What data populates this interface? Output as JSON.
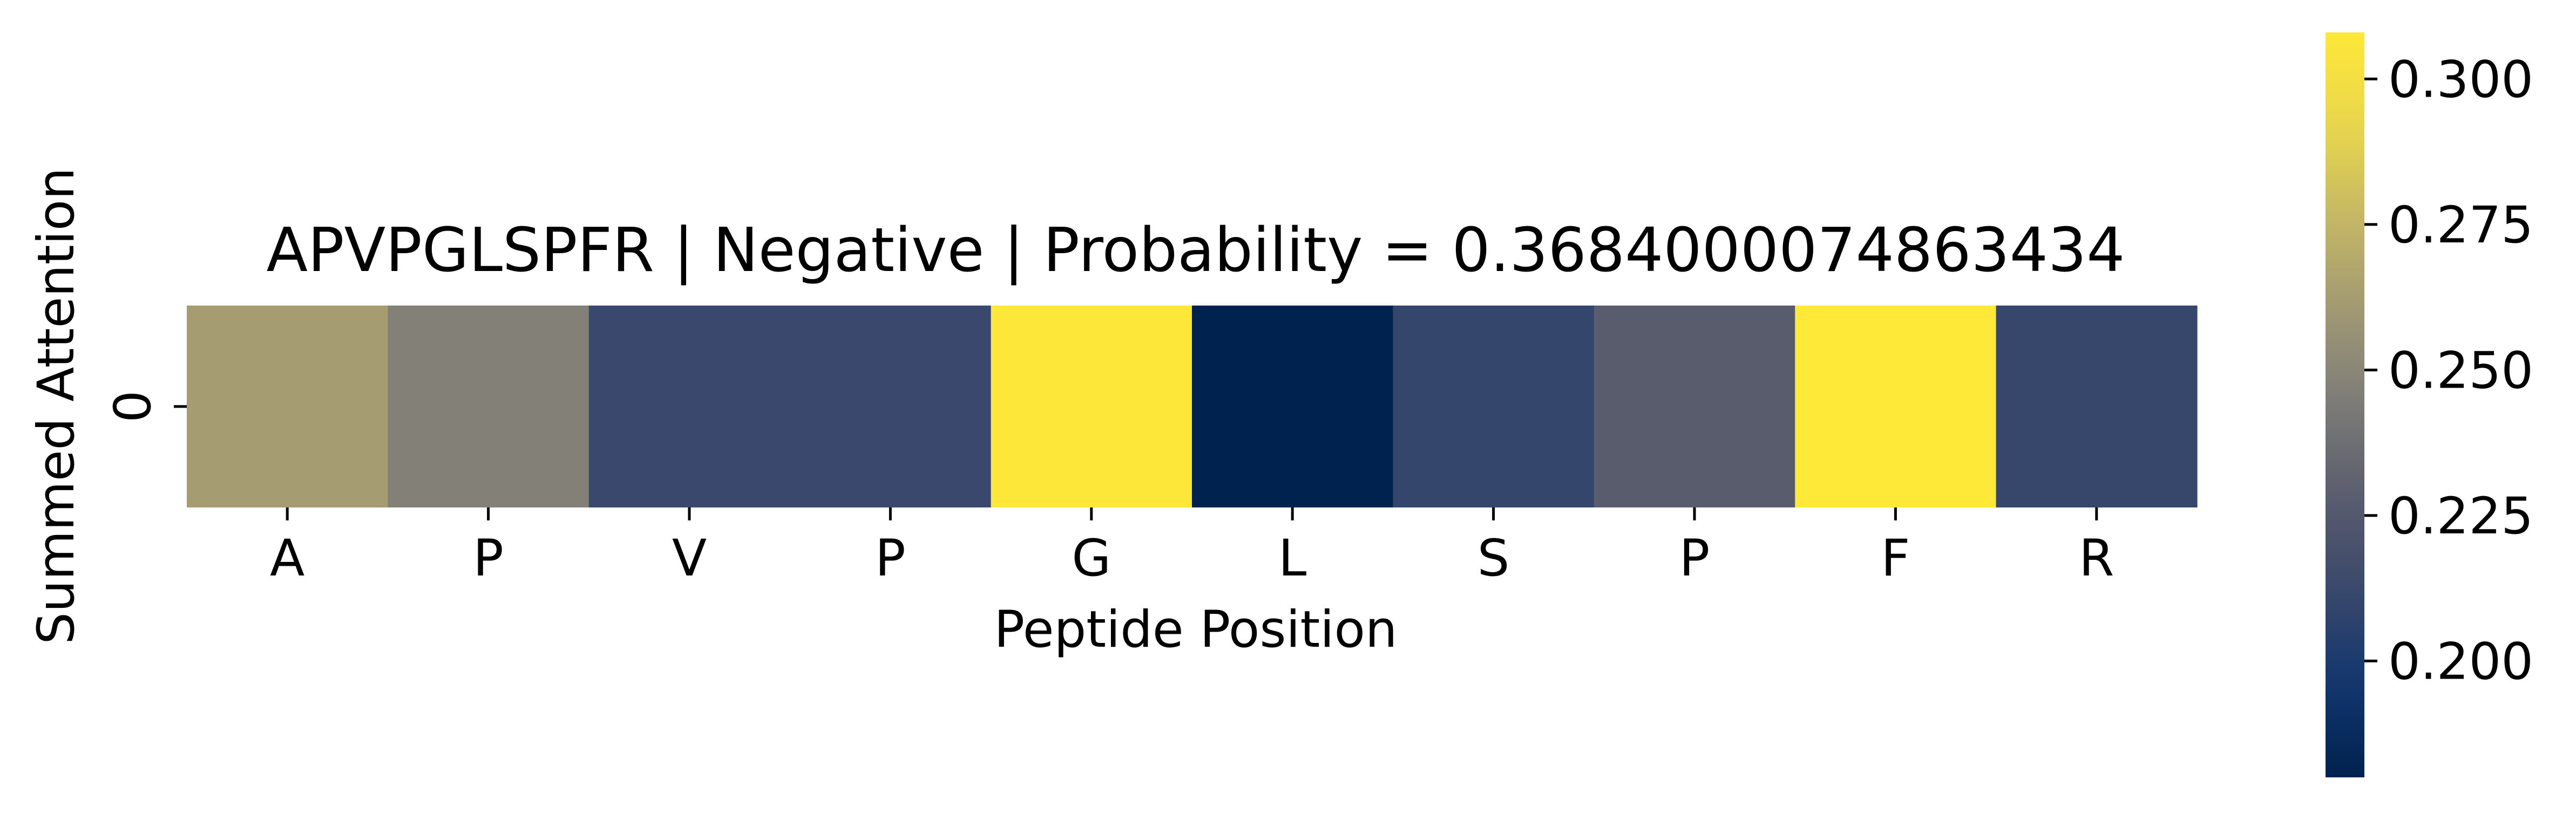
{
  "chart_data": {
    "type": "heatmap",
    "title": "APVPGLSPFR | Negative | Probability = 0.3684000074863434",
    "xlabel": "Peptide Position",
    "ylabel": "Summed Attention",
    "x_categories": [
      "A",
      "P",
      "V",
      "P",
      "G",
      "L",
      "S",
      "P",
      "F",
      "R"
    ],
    "y_categories": [
      "0"
    ],
    "values": [
      [
        0.262,
        0.247,
        0.212,
        0.212,
        0.307,
        0.18,
        0.21,
        0.228,
        0.308,
        0.211
      ]
    ],
    "colormap": "cividis",
    "colorbar": {
      "vmin": 0.18,
      "vmax": 0.308,
      "ticks": [
        0.2,
        0.225,
        0.25,
        0.275,
        0.3
      ],
      "tick_labels": [
        "0.200",
        "0.225",
        "0.250",
        "0.275",
        "0.300"
      ]
    },
    "colors": {
      "low": "#00224e",
      "mid": "#7c7b78",
      "high": "#fee838"
    },
    "grid": false,
    "legend": "colorbar right"
  }
}
